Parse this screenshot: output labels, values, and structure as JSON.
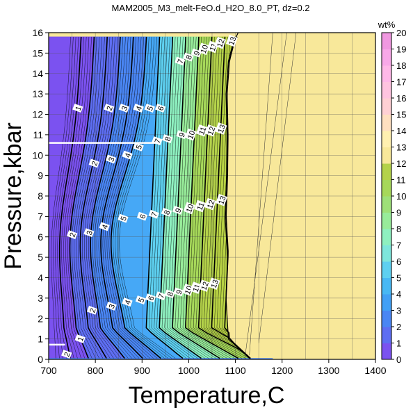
{
  "chart_data": {
    "type": "heatmap",
    "title": "MAM2005_M3_melt-FeO.d_H2O_8.0_PT, dz=0.2",
    "xlabel": "Temperature,C",
    "ylabel": "Pressure,kbar",
    "xlim": [
      700,
      1400
    ],
    "ylim": [
      0,
      16
    ],
    "x_ticks": [
      "700",
      "800",
      "900",
      "1000",
      "1100",
      "1200",
      "1300",
      "1400"
    ],
    "y_ticks": [
      "0",
      "1",
      "2",
      "3",
      "4",
      "5",
      "6",
      "7",
      "8",
      "9",
      "10",
      "11",
      "12",
      "13",
      "14",
      "15",
      "16"
    ],
    "grid": true,
    "colorbar": {
      "label": "wt%",
      "range": [
        0,
        20
      ],
      "ticks": [
        "0",
        "1",
        "2",
        "3",
        "4",
        "5",
        "6",
        "7",
        "8",
        "9",
        "10",
        "11",
        "12",
        "13",
        "14",
        "15",
        "16",
        "17",
        "18",
        "19",
        "20"
      ],
      "colors": [
        "#7b52f0",
        "#5e6ef2",
        "#4a86f4",
        "#42a0f5",
        "#48b8f4",
        "#5ed0f0",
        "#7ee6dc",
        "#8ef0c0",
        "#98ec9a",
        "#9ee078",
        "#a6d85a",
        "#b4d24a",
        "#f8e89a",
        "#fff0b0",
        "#ffe0c0",
        "#ffd0d4",
        "#ffc4e0",
        "#ffb8e8",
        "#f8a8e8",
        "#f098e0",
        "#e888d8"
      ]
    },
    "contour_levels": [
      1,
      2,
      3,
      4,
      5,
      6,
      7,
      8,
      9,
      10,
      11,
      12,
      13
    ],
    "contour_labels": [
      {
        "text": "1",
        "x": 763,
        "y": 12.3
      },
      {
        "text": "2",
        "x": 830,
        "y": 12.3
      },
      {
        "text": "3",
        "x": 862,
        "y": 12.3
      },
      {
        "text": "4",
        "x": 893,
        "y": 12.3
      },
      {
        "text": "5",
        "x": 917,
        "y": 12.3
      },
      {
        "text": "6",
        "x": 940,
        "y": 12.3
      },
      {
        "text": "7",
        "x": 982,
        "y": 14.6
      },
      {
        "text": "8",
        "x": 1000,
        "y": 14.8
      },
      {
        "text": "9",
        "x": 1017,
        "y": 15.0
      },
      {
        "text": "10",
        "x": 1033,
        "y": 15.2
      },
      {
        "text": "11",
        "x": 1052,
        "y": 15.3
      },
      {
        "text": "12",
        "x": 1068,
        "y": 15.5
      },
      {
        "text": "13",
        "x": 1093,
        "y": 15.6
      },
      {
        "text": "2",
        "x": 798,
        "y": 9.6
      },
      {
        "text": "3",
        "x": 834,
        "y": 9.8
      },
      {
        "text": "4",
        "x": 869,
        "y": 10.0
      },
      {
        "text": "5",
        "x": 893,
        "y": 10.4
      },
      {
        "text": "7",
        "x": 933,
        "y": 10.7
      },
      {
        "text": "8",
        "x": 955,
        "y": 10.8
      },
      {
        "text": "9",
        "x": 985,
        "y": 11.0
      },
      {
        "text": "10",
        "x": 1005,
        "y": 11.0
      },
      {
        "text": "11",
        "x": 1029,
        "y": 11.2
      },
      {
        "text": "12",
        "x": 1048,
        "y": 11.2
      },
      {
        "text": "13",
        "x": 1070,
        "y": 11.3
      },
      {
        "text": "2",
        "x": 751,
        "y": 6.1
      },
      {
        "text": "3",
        "x": 787,
        "y": 6.2
      },
      {
        "text": "4",
        "x": 820,
        "y": 6.5
      },
      {
        "text": "5",
        "x": 860,
        "y": 6.9
      },
      {
        "text": "6",
        "x": 901,
        "y": 7.0
      },
      {
        "text": "7",
        "x": 926,
        "y": 7.1
      },
      {
        "text": "8",
        "x": 953,
        "y": 7.2
      },
      {
        "text": "9",
        "x": 977,
        "y": 7.3
      },
      {
        "text": "10",
        "x": 1002,
        "y": 7.4
      },
      {
        "text": "11",
        "x": 1025,
        "y": 7.5
      },
      {
        "text": "12",
        "x": 1047,
        "y": 7.6
      },
      {
        "text": "13",
        "x": 1071,
        "y": 7.8
      },
      {
        "text": "2",
        "x": 794,
        "y": 2.4
      },
      {
        "text": "3",
        "x": 835,
        "y": 2.6
      },
      {
        "text": "4",
        "x": 869,
        "y": 2.8
      },
      {
        "text": "5",
        "x": 898,
        "y": 2.9
      },
      {
        "text": "6",
        "x": 919,
        "y": 3.0
      },
      {
        "text": "7",
        "x": 941,
        "y": 3.1
      },
      {
        "text": "8",
        "x": 960,
        "y": 3.2
      },
      {
        "text": "9",
        "x": 979,
        "y": 3.3
      },
      {
        "text": "10",
        "x": 999,
        "y": 3.4
      },
      {
        "text": "11",
        "x": 1016,
        "y": 3.5
      },
      {
        "text": "12",
        "x": 1034,
        "y": 3.6
      },
      {
        "text": "13",
        "x": 1055,
        "y": 3.7
      },
      {
        "text": "1",
        "x": 768,
        "y": 1.0
      },
      {
        "text": "2",
        "x": 739,
        "y": 0.25
      }
    ],
    "saturation_boundary": [
      [
        1130,
        0.05
      ],
      [
        1085,
        1.0
      ],
      [
        1080,
        3.0
      ],
      [
        1083,
        5.0
      ],
      [
        1078,
        7.0
      ],
      [
        1081,
        9.0
      ],
      [
        1082,
        11.0
      ],
      [
        1080,
        13.0
      ],
      [
        1085,
        14.6
      ],
      [
        1095,
        15.5
      ],
      [
        1106,
        16
      ]
    ],
    "h2o_bands": [
      {
        "from": 0,
        "to": 2,
        "color": "#7b52f0"
      },
      {
        "from": 2,
        "to": 4,
        "color": "#5e6ef2"
      },
      {
        "from": 4,
        "to": 6,
        "color": "#4a86f4"
      },
      {
        "from": 6,
        "to": 7,
        "color": "#46a8f6"
      },
      {
        "from": 7,
        "to": 8,
        "color": "#5ed0f0"
      },
      {
        "from": 8,
        "to": 9,
        "color": "#8ef0c0"
      },
      {
        "from": 9,
        "to": 10,
        "color": "#98ec9a"
      },
      {
        "from": 10,
        "to": 11,
        "color": "#a6d85a"
      },
      {
        "from": 11,
        "to": 12,
        "color": "#b4d24a"
      },
      {
        "from": 12,
        "to": 13,
        "color": "#b8d244"
      }
    ],
    "saturated_color": "#f8e89a"
  }
}
